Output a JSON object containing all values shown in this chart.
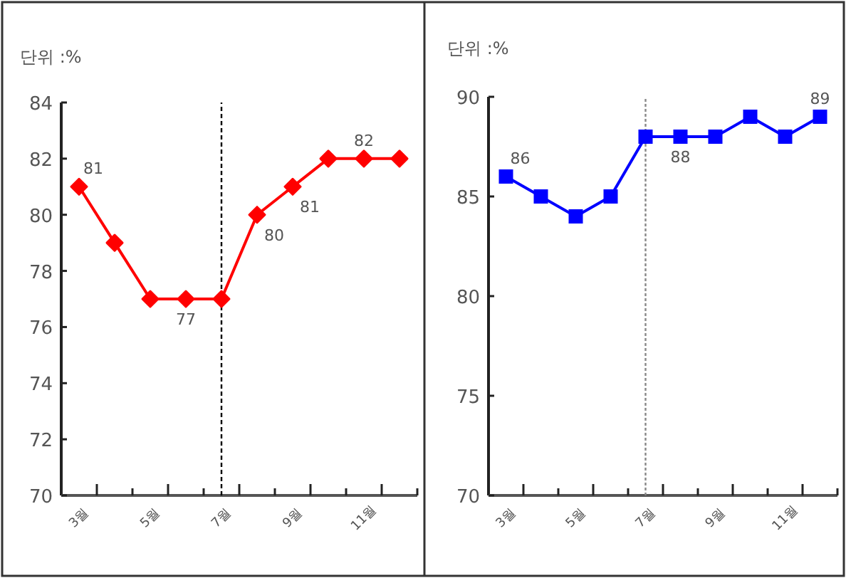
{
  "chart_data": [
    {
      "type": "line",
      "ylabel": "단위 :%",
      "categories": [
        "3월",
        null,
        "5월",
        null,
        "7월",
        null,
        "9월",
        null,
        "11월",
        null
      ],
      "ylim": [
        70,
        84
      ],
      "yticks": [
        70,
        72,
        74,
        76,
        78,
        80,
        82,
        84
      ],
      "marker": "diamond",
      "ref_lines": [
        {
          "axis": "x",
          "value": "7월",
          "line_style": "dashed",
          "color": "#000000"
        }
      ],
      "series": [
        {
          "color": "#ff0000",
          "values": [
            81,
            79,
            77,
            77,
            77,
            80,
            81,
            82,
            82,
            82
          ],
          "value_labels": [
            "81",
            null,
            null,
            "77",
            null,
            "80",
            "81",
            null,
            "82",
            null
          ]
        }
      ]
    },
    {
      "type": "line",
      "ylabel": "단위 :%",
      "categories": [
        "3월",
        null,
        "5월",
        null,
        "7월",
        null,
        "9월",
        null,
        "11월",
        null
      ],
      "ylim": [
        70,
        90
      ],
      "yticks": [
        70,
        75,
        80,
        85,
        90
      ],
      "marker": "square",
      "ref_lines": [
        {
          "axis": "x",
          "value": "7월",
          "line_style": "dotted",
          "color": "#888888"
        }
      ],
      "series": [
        {
          "color": "#0000ff",
          "values": [
            86,
            85,
            84,
            85,
            88,
            88,
            88,
            89,
            88,
            89
          ],
          "value_labels": [
            "86",
            null,
            null,
            null,
            null,
            "88",
            null,
            null,
            null,
            "89"
          ]
        }
      ]
    }
  ]
}
